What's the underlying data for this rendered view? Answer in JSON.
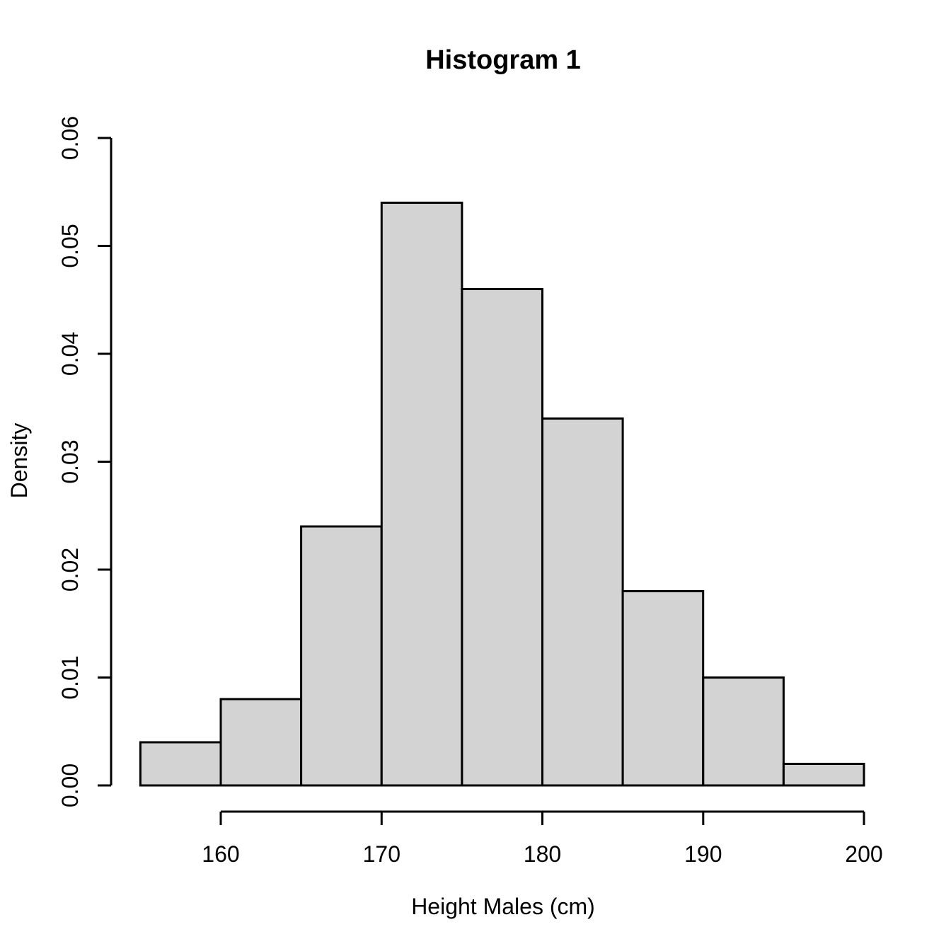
{
  "figure": {
    "background": "#ffffff"
  },
  "chart_data": {
    "type": "bar",
    "subtype": "histogram",
    "title": "Histogram 1",
    "xlabel": "Height Males (cm)",
    "ylabel": "Density",
    "bin_edges": [
      155,
      160,
      165,
      170,
      175,
      180,
      185,
      190,
      195,
      200
    ],
    "densities": [
      0.004,
      0.008,
      0.024,
      0.054,
      0.046,
      0.034,
      0.018,
      0.01,
      0.002
    ],
    "x_ticks": [
      160,
      170,
      180,
      190,
      200
    ],
    "y_ticks": [
      0,
      0.01,
      0.02,
      0.03,
      0.04,
      0.05,
      0.06
    ],
    "y_tick_labels": [
      "0.00",
      "0.01",
      "0.02",
      "0.03",
      "0.04",
      "0.05",
      "0.06"
    ],
    "xlim": [
      155,
      200
    ],
    "ylim": [
      0,
      0.06
    ],
    "grid": false,
    "legend": null,
    "bar_fill": "#d3d3d3",
    "bar_border": "#000000",
    "axis_color": "#000000",
    "text_color": "#000000"
  }
}
